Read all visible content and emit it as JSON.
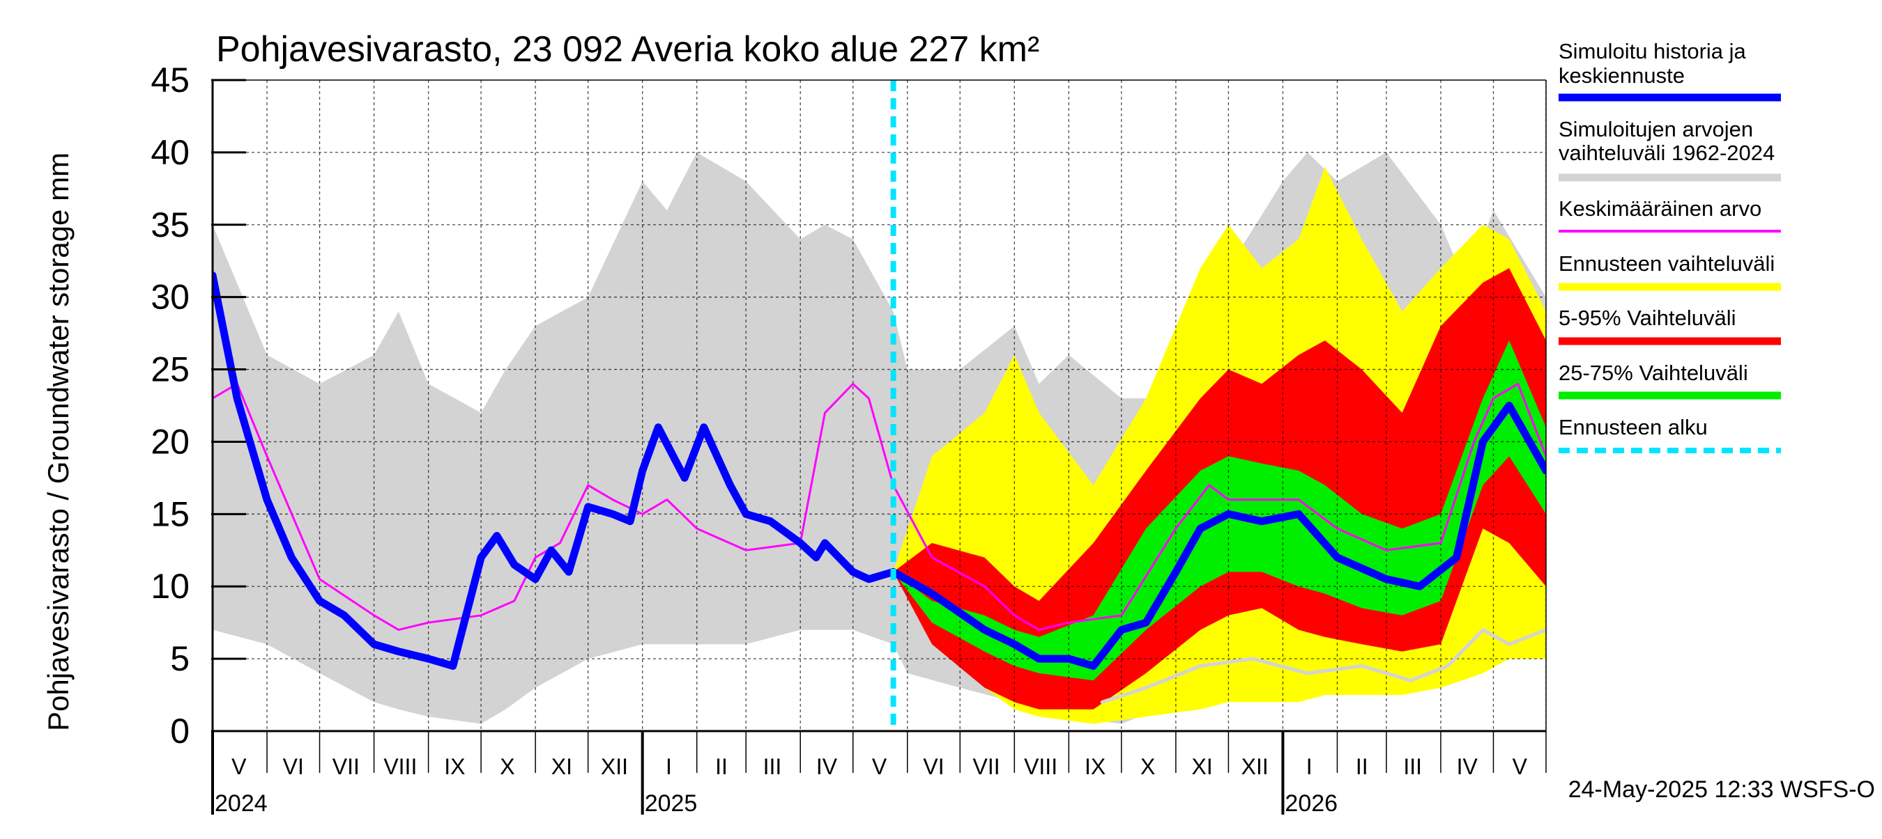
{
  "chart_data": {
    "type": "area",
    "title": "Pohjavesivarasto, 23 092 Averia koko alue 227 km²",
    "ylabel": "Pohjavesivarasto / Groundwater storage   mm",
    "unit_label": "mm",
    "ylim": [
      0,
      45
    ],
    "y_ticks": [
      0,
      5,
      10,
      15,
      20,
      25,
      30,
      35,
      40,
      45
    ],
    "x_axis": "date",
    "xlim": [
      "2024-05-01",
      "2026-05-31"
    ],
    "month_labels": [
      {
        "label": "V",
        "date": "2024-05-16"
      },
      {
        "label": "VI",
        "date": "2024-06-16"
      },
      {
        "label": "VII",
        "date": "2024-07-16"
      },
      {
        "label": "VIII",
        "date": "2024-08-16"
      },
      {
        "label": "IX",
        "date": "2024-09-16"
      },
      {
        "label": "X",
        "date": "2024-10-16"
      },
      {
        "label": "XI",
        "date": "2024-11-16"
      },
      {
        "label": "XII",
        "date": "2024-12-16"
      },
      {
        "label": "I",
        "date": "2025-01-16"
      },
      {
        "label": "II",
        "date": "2025-02-15"
      },
      {
        "label": "III",
        "date": "2025-03-16"
      },
      {
        "label": "IV",
        "date": "2025-04-16"
      },
      {
        "label": "V",
        "date": "2025-05-16"
      },
      {
        "label": "VI",
        "date": "2025-06-16"
      },
      {
        "label": "VII",
        "date": "2025-07-16"
      },
      {
        "label": "VIII",
        "date": "2025-08-16"
      },
      {
        "label": "IX",
        "date": "2025-09-16"
      },
      {
        "label": "X",
        "date": "2025-10-16"
      },
      {
        "label": "XI",
        "date": "2025-11-16"
      },
      {
        "label": "XII",
        "date": "2025-12-16"
      },
      {
        "label": "I",
        "date": "2026-01-16"
      },
      {
        "label": "II",
        "date": "2026-02-15"
      },
      {
        "label": "III",
        "date": "2026-03-16"
      },
      {
        "label": "IV",
        "date": "2026-04-16"
      },
      {
        "label": "V",
        "date": "2026-05-16"
      }
    ],
    "month_starts": [
      "2024-05-01",
      "2024-06-01",
      "2024-07-01",
      "2024-08-01",
      "2024-09-01",
      "2024-10-01",
      "2024-11-01",
      "2024-12-01",
      "2025-01-01",
      "2025-02-01",
      "2025-03-01",
      "2025-04-01",
      "2025-05-01",
      "2025-06-01",
      "2025-07-01",
      "2025-08-01",
      "2025-09-01",
      "2025-10-01",
      "2025-11-01",
      "2025-12-01",
      "2026-01-01",
      "2026-02-01",
      "2026-03-01",
      "2026-04-01",
      "2026-05-01",
      "2026-05-31"
    ],
    "year_labels": [
      {
        "label": "2024",
        "date": "2024-05-01"
      },
      {
        "label": "2025",
        "date": "2025-01-01"
      },
      {
        "label": "2026",
        "date": "2026-01-01"
      }
    ],
    "forecast_start": "2025-05-24",
    "legend": [
      {
        "key": "simulated",
        "label_lines": [
          "Simuloitu historia ja",
          "keskiennuste"
        ],
        "color": "#0000ff"
      },
      {
        "key": "hist_range",
        "label_lines": [
          "Simuloitujen arvojen",
          "vaihteluväli 1962-2024"
        ],
        "color": "#d3d3d3"
      },
      {
        "key": "mean",
        "label_lines": [
          "Keskimääräinen arvo"
        ],
        "color": "#ff00ff"
      },
      {
        "key": "fc_range",
        "label_lines": [
          "Ennusteen vaihteluväli"
        ],
        "color": "#ffff00"
      },
      {
        "key": "fc_5_95",
        "label_lines": [
          "5-95% Vaihteluväli"
        ],
        "color": "#ff0000"
      },
      {
        "key": "fc_25_75",
        "label_lines": [
          "25-75% Vaihteluväli"
        ],
        "color": "#00ee00"
      },
      {
        "key": "fc_start",
        "label_lines": [
          "Ennusteen alku"
        ],
        "color": "#00e5ff"
      }
    ],
    "series": [
      {
        "name": "Simuloitujen arvojen vaihteluväli 1962-2024",
        "kind": "band",
        "color": "#d3d3d3",
        "x": [
          "2024-05-01",
          "2024-06-01",
          "2024-07-01",
          "2024-08-01",
          "2024-08-15",
          "2024-09-01",
          "2024-10-01",
          "2024-10-15",
          "2024-11-01",
          "2024-12-01",
          "2025-01-01",
          "2025-01-15",
          "2025-02-01",
          "2025-03-01",
          "2025-04-01",
          "2025-04-15",
          "2025-05-01",
          "2025-05-24",
          "2025-06-01",
          "2025-07-01",
          "2025-08-01",
          "2025-08-15",
          "2025-09-01",
          "2025-10-01",
          "2025-11-01",
          "2025-12-01",
          "2026-01-01",
          "2026-01-15",
          "2026-02-01",
          "2026-03-01",
          "2026-04-01",
          "2026-04-15",
          "2026-05-01",
          "2026-05-31"
        ],
        "upper": [
          35,
          26,
          24,
          26,
          29,
          24,
          22,
          25,
          28,
          30,
          38,
          36,
          40,
          38,
          34,
          35,
          34,
          29,
          25,
          25,
          28,
          24,
          26,
          23,
          23,
          32,
          38,
          40,
          38,
          40,
          35,
          31,
          36,
          30
        ],
        "lower": [
          7,
          6,
          4,
          2,
          1.5,
          1,
          0.5,
          1.5,
          3,
          5,
          6,
          6,
          6,
          6,
          7,
          7,
          7,
          6,
          4,
          3,
          2,
          1.5,
          1,
          0.5,
          2,
          4,
          4,
          4,
          4,
          4,
          4,
          4,
          6,
          7
        ]
      },
      {
        "name": "Ennusteen vaihteluväli",
        "kind": "band",
        "color": "#ffff00",
        "x": [
          "2025-05-24",
          "2025-06-15",
          "2025-07-15",
          "2025-08-01",
          "2025-08-15",
          "2025-09-15",
          "2025-10-15",
          "2025-11-15",
          "2025-12-01",
          "2025-12-20",
          "2026-01-10",
          "2026-01-25",
          "2026-02-15",
          "2026-03-10",
          "2026-04-01",
          "2026-04-25",
          "2026-05-10",
          "2026-05-31"
        ],
        "upper": [
          11,
          19,
          22,
          26,
          22,
          17,
          23,
          32,
          35,
          32,
          34,
          39,
          34,
          29,
          32,
          35,
          34,
          29
        ],
        "lower": [
          11,
          7,
          3,
          1.5,
          1,
          0.5,
          1,
          1.5,
          2,
          2,
          2,
          2.5,
          2.5,
          2.5,
          3,
          4,
          5,
          5
        ]
      },
      {
        "name": "5-95% Vaihteluväli",
        "kind": "band",
        "color": "#ff0000",
        "x": [
          "2025-05-24",
          "2025-06-15",
          "2025-07-15",
          "2025-08-01",
          "2025-08-15",
          "2025-09-15",
          "2025-10-15",
          "2025-11-15",
          "2025-12-01",
          "2025-12-20",
          "2026-01-10",
          "2026-01-25",
          "2026-02-15",
          "2026-03-10",
          "2026-04-01",
          "2026-04-25",
          "2026-05-10",
          "2026-05-31"
        ],
        "upper": [
          11,
          13,
          12,
          10,
          9,
          13,
          18,
          23,
          25,
          24,
          26,
          27,
          25,
          22,
          28,
          31,
          32,
          27
        ],
        "lower": [
          11,
          6,
          3,
          2,
          1.5,
          1.5,
          4,
          7,
          8,
          8.5,
          7,
          6.5,
          6,
          5.5,
          6,
          14,
          13,
          10
        ]
      },
      {
        "name": "25-75% Vaihteluväli",
        "kind": "band",
        "color": "#00ee00",
        "x": [
          "2025-05-24",
          "2025-06-15",
          "2025-07-15",
          "2025-08-01",
          "2025-08-15",
          "2025-09-15",
          "2025-10-15",
          "2025-11-15",
          "2025-12-01",
          "2025-12-20",
          "2026-01-10",
          "2026-01-25",
          "2026-02-15",
          "2026-03-10",
          "2026-04-01",
          "2026-04-25",
          "2026-05-10",
          "2026-05-31"
        ],
        "upper": [
          11,
          9,
          8,
          7,
          6.5,
          8,
          14,
          18,
          19,
          18.5,
          18,
          17,
          15,
          14,
          15,
          23,
          27,
          21
        ],
        "lower": [
          11,
          7.5,
          5.5,
          4.5,
          4,
          3.5,
          7,
          10,
          11,
          11,
          10,
          9.5,
          8.5,
          8,
          9,
          17,
          19,
          15
        ]
      },
      {
        "name": "Simuloitujen minimi",
        "kind": "line",
        "color": "#d3d3d3",
        "width": 5,
        "x": [
          "2025-09-20",
          "2025-10-15",
          "2025-11-15",
          "2025-12-15",
          "2026-01-15",
          "2026-02-15",
          "2026-03-15",
          "2026-04-05",
          "2026-04-25",
          "2026-05-10",
          "2026-05-31"
        ],
        "y": [
          2,
          3,
          4.5,
          5,
          4,
          4.5,
          3.5,
          4.5,
          7,
          6,
          7
        ]
      },
      {
        "name": "Keskimääräinen arvo",
        "kind": "line",
        "color": "#ff00ff",
        "width": 3,
        "x": [
          "2024-05-01",
          "2024-05-15",
          "2024-06-01",
          "2024-07-01",
          "2024-08-01",
          "2024-08-15",
          "2024-09-01",
          "2024-10-01",
          "2024-10-20",
          "2024-11-01",
          "2024-11-15",
          "2024-12-01",
          "2024-12-15",
          "2025-01-01",
          "2025-01-15",
          "2025-02-01",
          "2025-03-01",
          "2025-04-01",
          "2025-04-15",
          "2025-05-01",
          "2025-05-10",
          "2025-05-24",
          "2025-06-15",
          "2025-07-15",
          "2025-08-01",
          "2025-08-15",
          "2025-09-01",
          "2025-10-01",
          "2025-11-01",
          "2025-11-20",
          "2025-12-01",
          "2025-12-20",
          "2026-01-10",
          "2026-02-01",
          "2026-03-01",
          "2026-04-01",
          "2026-04-20",
          "2026-05-01",
          "2026-05-15",
          "2026-05-31"
        ],
        "y": [
          23,
          24,
          19,
          10.5,
          8,
          7,
          7.5,
          8,
          9,
          12,
          13,
          17,
          16,
          15,
          16,
          14,
          12.5,
          13,
          22,
          24,
          23,
          17,
          12,
          10,
          8,
          7,
          7.5,
          8,
          14,
          17,
          16,
          16,
          16,
          14,
          12.5,
          13,
          20,
          23,
          24,
          19
        ]
      },
      {
        "name": "Simuloitu historia ja keskiennuste",
        "kind": "line",
        "color": "#0000ff",
        "width": 11,
        "x": [
          "2024-05-01",
          "2024-05-15",
          "2024-06-01",
          "2024-06-15",
          "2024-07-01",
          "2024-07-15",
          "2024-08-01",
          "2024-08-15",
          "2024-09-01",
          "2024-09-15",
          "2024-10-01",
          "2024-10-10",
          "2024-10-20",
          "2024-11-01",
          "2024-11-10",
          "2024-11-20",
          "2024-12-01",
          "2024-12-15",
          "2024-12-25",
          "2025-01-01",
          "2025-01-10",
          "2025-01-25",
          "2025-02-05",
          "2025-02-20",
          "2025-03-01",
          "2025-03-15",
          "2025-04-01",
          "2025-04-10",
          "2025-04-15",
          "2025-05-01",
          "2025-05-10",
          "2025-05-24",
          "2025-06-15",
          "2025-07-15",
          "2025-08-01",
          "2025-08-15",
          "2025-09-01",
          "2025-09-15",
          "2025-10-01",
          "2025-10-15",
          "2025-11-01",
          "2025-11-15",
          "2025-12-01",
          "2025-12-20",
          "2026-01-10",
          "2026-02-01",
          "2026-03-01",
          "2026-03-20",
          "2026-04-10",
          "2026-04-25",
          "2026-05-10",
          "2026-05-31"
        ],
        "y": [
          31.5,
          23,
          16,
          12,
          9,
          8,
          6,
          5.5,
          5,
          4.5,
          12,
          13.5,
          11.5,
          10.5,
          12.5,
          11,
          15.5,
          15,
          14.5,
          18,
          21,
          17.5,
          21,
          17,
          15,
          14.5,
          13,
          12,
          13,
          11,
          10.5,
          11,
          9.5,
          7,
          6,
          5,
          5,
          4.5,
          7,
          7.5,
          11,
          14,
          15,
          14.5,
          15,
          12,
          10.5,
          10,
          12,
          20,
          22.5,
          18
        ]
      }
    ]
  },
  "timestamp": "24-May-2025 12:33 WSFS-O"
}
